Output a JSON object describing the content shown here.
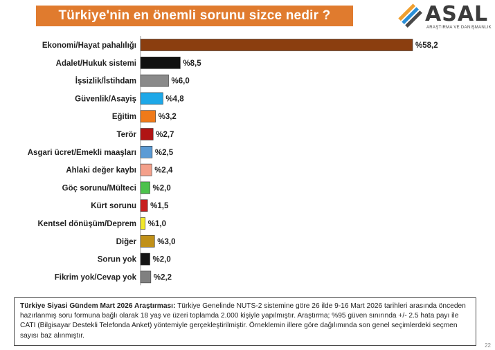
{
  "header": {
    "title": "Türkiye'nin en önemli sorunu sizce nedir ?"
  },
  "logo": {
    "name": "ASAL",
    "subtitle": "ARAŞTIRMA VE DANIŞMANLIK",
    "colors": [
      "#f0a030",
      "#2a8fd8",
      "#4a4a4a"
    ]
  },
  "chart_data": {
    "type": "bar",
    "orientation": "horizontal",
    "title": "Türkiye'nin en önemli sorunu sizce nedir ?",
    "value_prefix": "%",
    "decimal_separator": ",",
    "xlim": [
      0,
      58.2
    ],
    "grid": false,
    "legend": "none",
    "categories": [
      "Ekonomi/Hayat pahalılığı",
      "Adalet/Hukuk sistemi",
      "İşsizlik/İstihdam",
      "Güvenlik/Asayiş",
      "Eğitim",
      "Terör",
      "Asgari ücret/Emekli maaşları",
      "Ahlaki değer kaybı",
      "Göç sorunu/Mülteci",
      "Kürt sorunu",
      "Kentsel dönüşüm/Deprem",
      "Diğer",
      "Sorun yok",
      "Fikrim yok/Cevap yok"
    ],
    "values": [
      58.2,
      8.5,
      6.0,
      4.8,
      3.2,
      2.7,
      2.5,
      2.4,
      2.0,
      1.5,
      1.0,
      3.0,
      2.0,
      2.2
    ],
    "labels": [
      "%58,2",
      "%8,5",
      "%6,0",
      "%4,8",
      "%3,2",
      "%2,7",
      "%2,5",
      "%2,4",
      "%2,0",
      "%1,5",
      "%1,0",
      "%3,0",
      "%2,0",
      "%2,2"
    ],
    "colors": [
      "#8b3e0f",
      "#111111",
      "#8a8a8a",
      "#1ea8e8",
      "#f07a1a",
      "#b01414",
      "#5b9bd5",
      "#f4a08a",
      "#4cc24c",
      "#c81e1e",
      "#f2e82a",
      "#c09018",
      "#151515",
      "#808080"
    ]
  },
  "note": {
    "bold": "Türkiye Siyasi Gündem Mart 2026 Araştırması:",
    "text": " Türkiye Genelinde NUTS-2 sistemine göre 26 ilde 9-16 Mart 2026 tarihleri arasında önceden hazırlanmış soru formuna bağlı olarak 18 yaş ve üzeri toplamda 2.000 kişiyle yapılmıştır. Araştırma; %95 güven sınırında +/- 2.5 hata payı ile CATI (Bilgisayar Destekli Telefonda Anket) yöntemiyle gerçekleştirilmiştir. Örneklemin illere göre dağılımında son genel seçimlerdeki seçmen sayısı baz alınmıştır.",
    "page": "22"
  }
}
